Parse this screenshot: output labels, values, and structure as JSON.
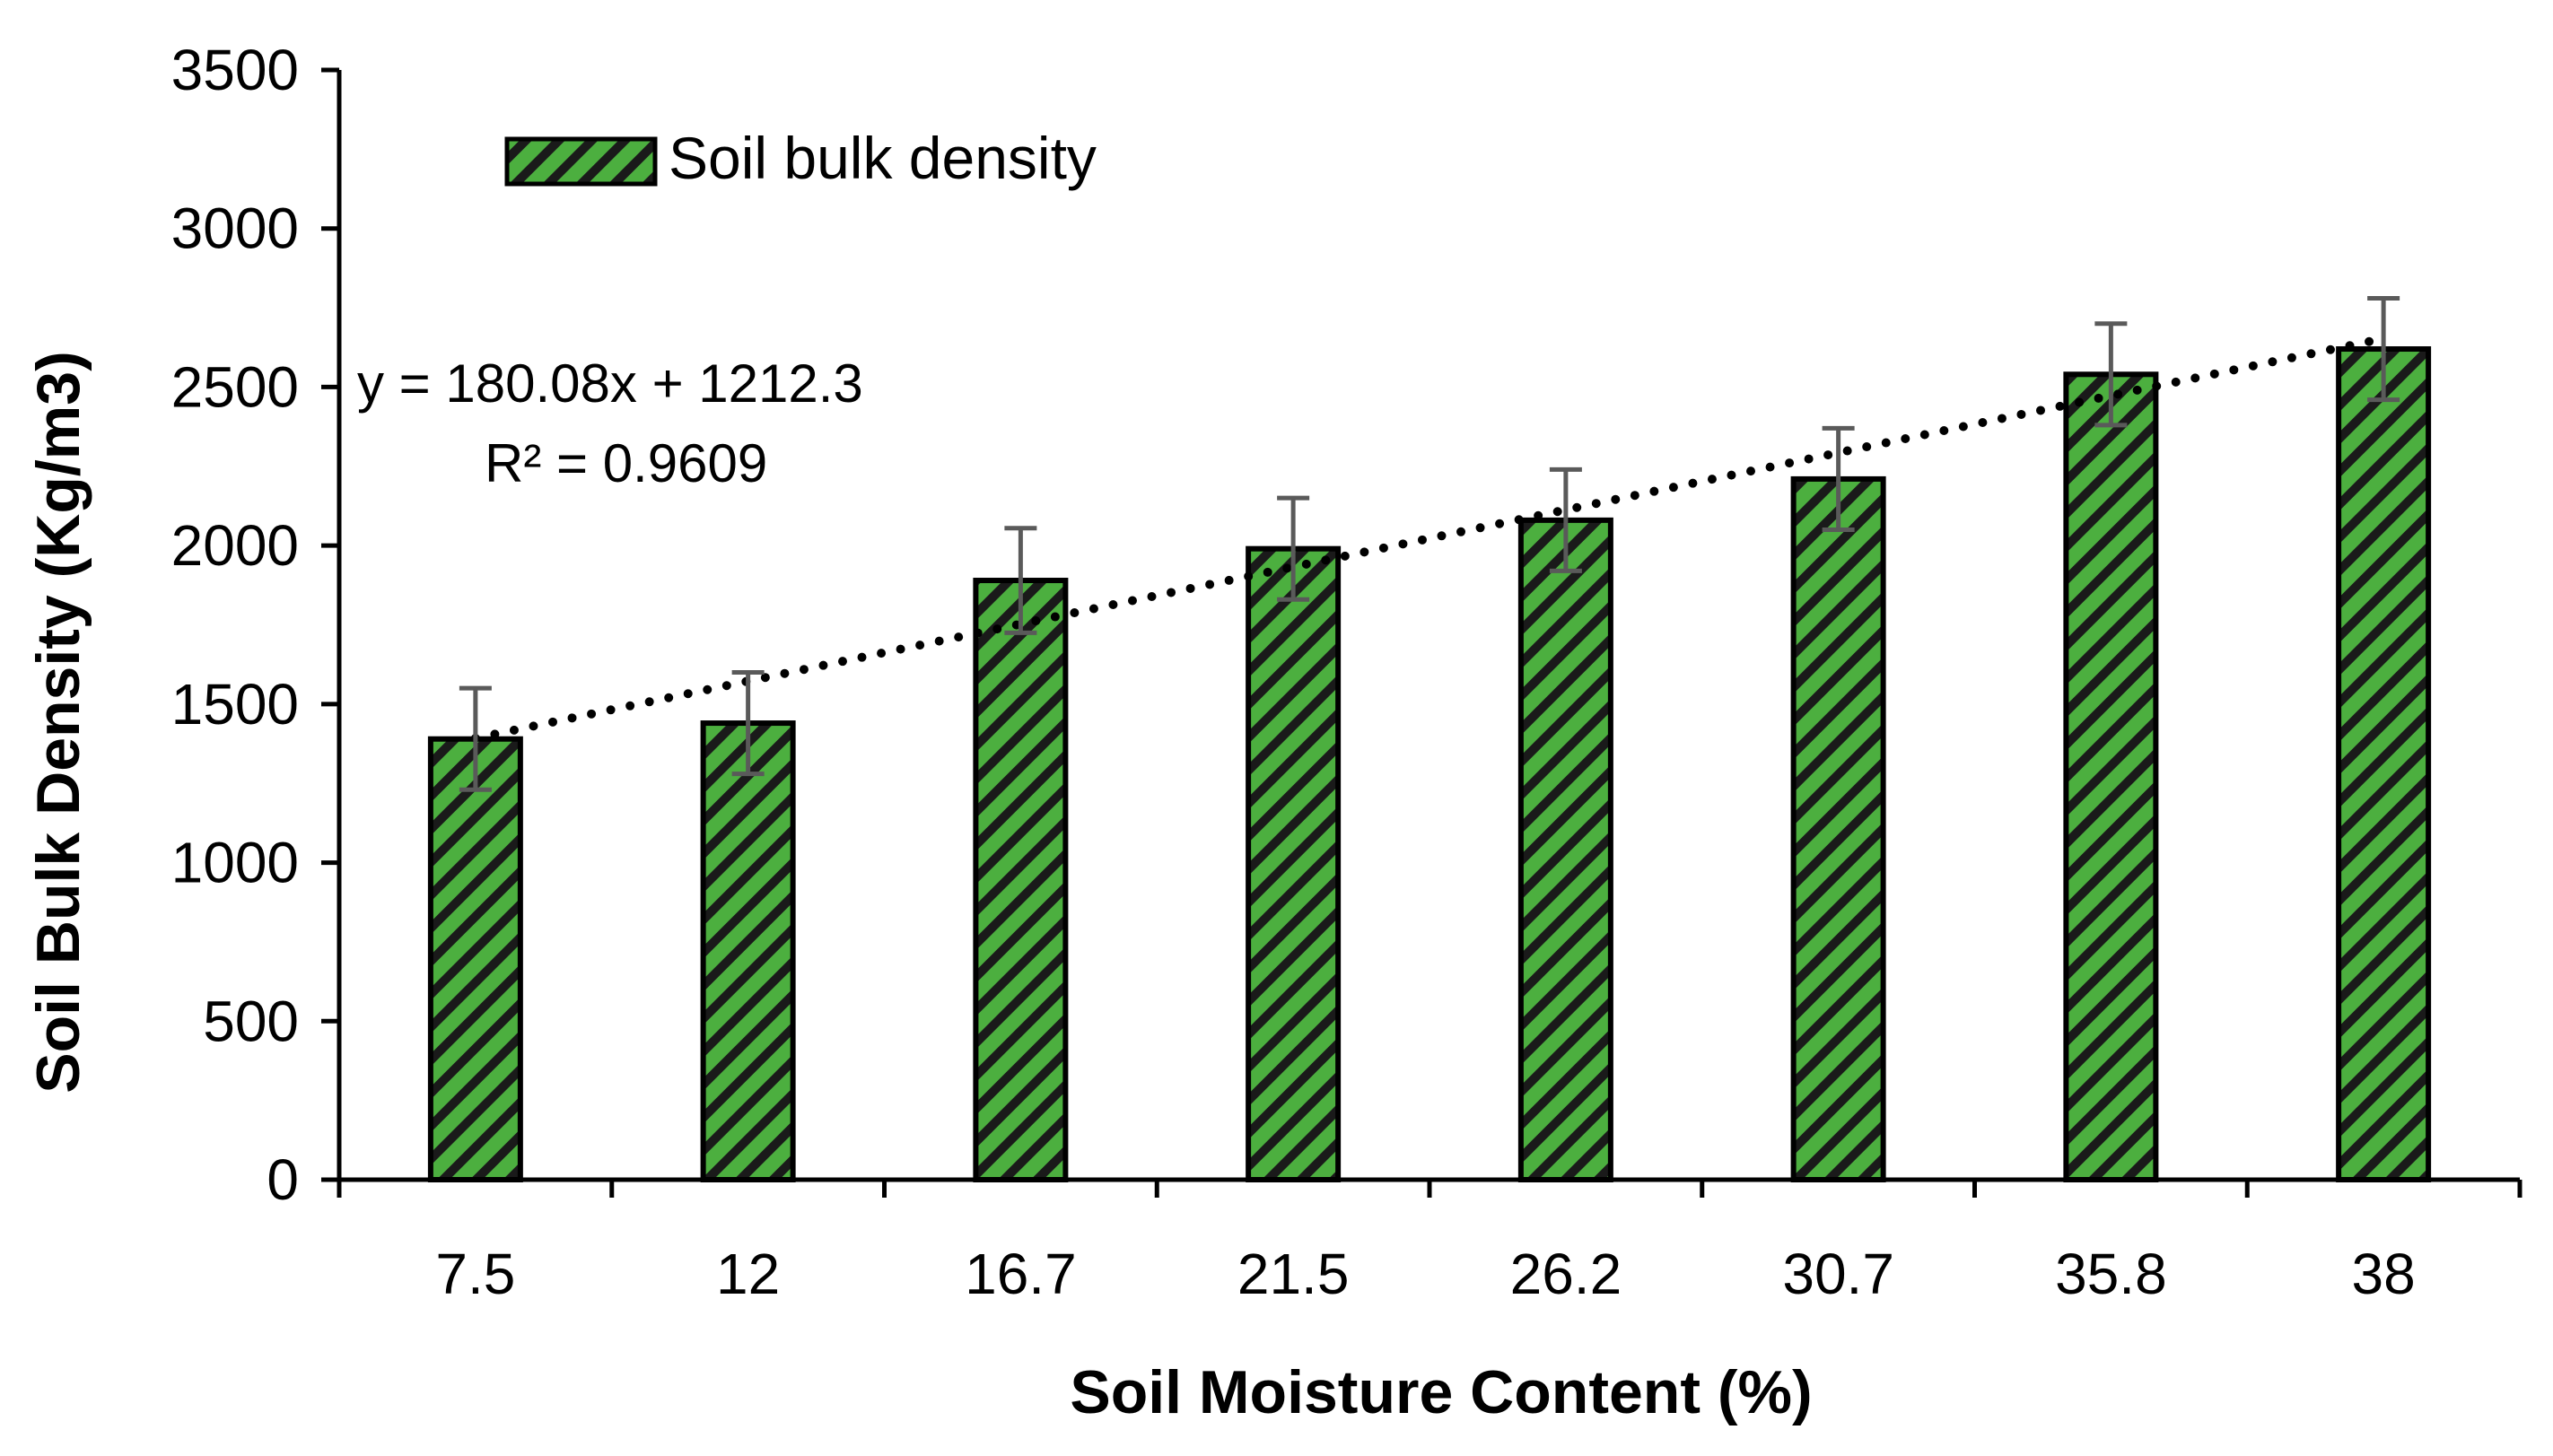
{
  "chart_data": {
    "type": "bar",
    "categories": [
      "7.5",
      "12",
      "16.7",
      "21.5",
      "26.2",
      "30.7",
      "35.8",
      "38"
    ],
    "series": [
      {
        "name": "Soil bulk density",
        "values": [
          1390,
          1440,
          1890,
          1990,
          2080,
          2210,
          2540,
          2620
        ],
        "error": [
          160,
          160,
          165,
          160,
          160,
          160,
          160,
          160
        ]
      }
    ],
    "xlabel": "Soil Moisture Content (%)",
    "ylabel": "Soil Bulk Density (Kg/m3)",
    "ylim": [
      0,
      3500
    ],
    "yticks": [
      0,
      500,
      1000,
      1500,
      2000,
      2500,
      3000,
      3500
    ],
    "trendline": {
      "type": "linear",
      "slope": 180.08,
      "intercept": 1212.3,
      "equation": "y = 180.08x + 1212.3",
      "r2": "R² = 0.9609"
    },
    "legend": {
      "position": "top-left"
    },
    "grid": false,
    "colors": {
      "bar_fill": "#4caf3f",
      "hatch": "#1a1a1a",
      "border": "#000000",
      "error_bar": "#5a5a5a",
      "trend": "#000000"
    }
  }
}
